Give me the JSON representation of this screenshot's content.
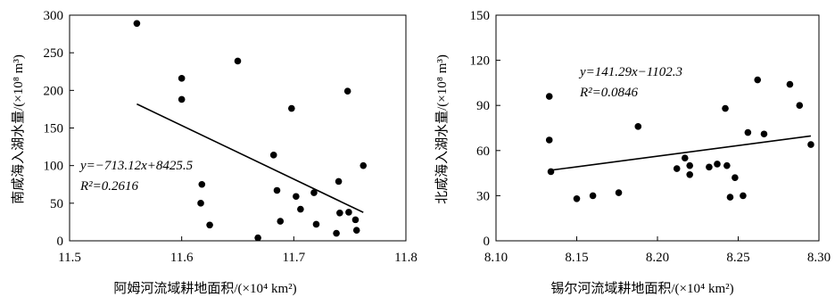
{
  "chart_data": [
    {
      "type": "scatter",
      "xlabel": "阿姆河流域耕地面积/(×10⁴ km²)",
      "ylabel": "南咸海入湖水量/(×10⁸ m³)",
      "xlim": [
        11.5,
        11.8
      ],
      "ylim": [
        0,
        300
      ],
      "xticks": [
        "11.5",
        "11.6",
        "11.7",
        "11.8"
      ],
      "yticks": [
        "0",
        "50",
        "100",
        "150",
        "200",
        "250",
        "300"
      ],
      "grid": false,
      "equation": "y=−713.12x+8425.5",
      "r2": "R²=0.2616",
      "trend_line": {
        "slope": -713.12,
        "intercept": 8425.5,
        "x_from": 11.56,
        "x_to": 11.762
      },
      "points": [
        {
          "x": 11.56,
          "y": 289
        },
        {
          "x": 11.6,
          "y": 216
        },
        {
          "x": 11.6,
          "y": 188
        },
        {
          "x": 11.65,
          "y": 239
        },
        {
          "x": 11.618,
          "y": 75
        },
        {
          "x": 11.617,
          "y": 50
        },
        {
          "x": 11.625,
          "y": 21
        },
        {
          "x": 11.668,
          "y": 4
        },
        {
          "x": 11.682,
          "y": 114
        },
        {
          "x": 11.685,
          "y": 67
        },
        {
          "x": 11.688,
          "y": 26
        },
        {
          "x": 11.698,
          "y": 176
        },
        {
          "x": 11.702,
          "y": 59
        },
        {
          "x": 11.706,
          "y": 42
        },
        {
          "x": 11.718,
          "y": 64
        },
        {
          "x": 11.72,
          "y": 22
        },
        {
          "x": 11.74,
          "y": 79
        },
        {
          "x": 11.741,
          "y": 37
        },
        {
          "x": 11.738,
          "y": 10
        },
        {
          "x": 11.748,
          "y": 199
        },
        {
          "x": 11.749,
          "y": 38
        },
        {
          "x": 11.755,
          "y": 28
        },
        {
          "x": 11.756,
          "y": 14
        },
        {
          "x": 11.762,
          "y": 100
        }
      ]
    },
    {
      "type": "scatter",
      "xlabel": "锡尔河流域耕地面积/(×10⁴ km²)",
      "ylabel": "北咸海入湖水量/(×10⁸ m³)",
      "xlim": [
        8.1,
        8.3
      ],
      "ylim": [
        0,
        150
      ],
      "xticks": [
        "8.10",
        "8.15",
        "8.20",
        "8.25",
        "8.30"
      ],
      "yticks": [
        "0",
        "30",
        "60",
        "90",
        "120",
        "150"
      ],
      "grid": false,
      "equation": "y=141.29x−1102.3",
      "r2": "R²=0.0846",
      "trend_line": {
        "slope": 141.29,
        "intercept": -1102.3,
        "x_from": 8.133,
        "x_to": 8.295
      },
      "points": [
        {
          "x": 8.133,
          "y": 96
        },
        {
          "x": 8.133,
          "y": 67
        },
        {
          "x": 8.134,
          "y": 46
        },
        {
          "x": 8.15,
          "y": 28
        },
        {
          "x": 8.16,
          "y": 30
        },
        {
          "x": 8.176,
          "y": 32
        },
        {
          "x": 8.188,
          "y": 76
        },
        {
          "x": 8.212,
          "y": 48
        },
        {
          "x": 8.217,
          "y": 55
        },
        {
          "x": 8.22,
          "y": 50
        },
        {
          "x": 8.22,
          "y": 44
        },
        {
          "x": 8.232,
          "y": 49
        },
        {
          "x": 8.237,
          "y": 51
        },
        {
          "x": 8.242,
          "y": 88
        },
        {
          "x": 8.243,
          "y": 50
        },
        {
          "x": 8.245,
          "y": 29
        },
        {
          "x": 8.248,
          "y": 42
        },
        {
          "x": 8.253,
          "y": 30
        },
        {
          "x": 8.256,
          "y": 72
        },
        {
          "x": 8.262,
          "y": 107
        },
        {
          "x": 8.266,
          "y": 71
        },
        {
          "x": 8.282,
          "y": 104
        },
        {
          "x": 8.288,
          "y": 90
        },
        {
          "x": 8.295,
          "y": 64
        }
      ]
    }
  ]
}
